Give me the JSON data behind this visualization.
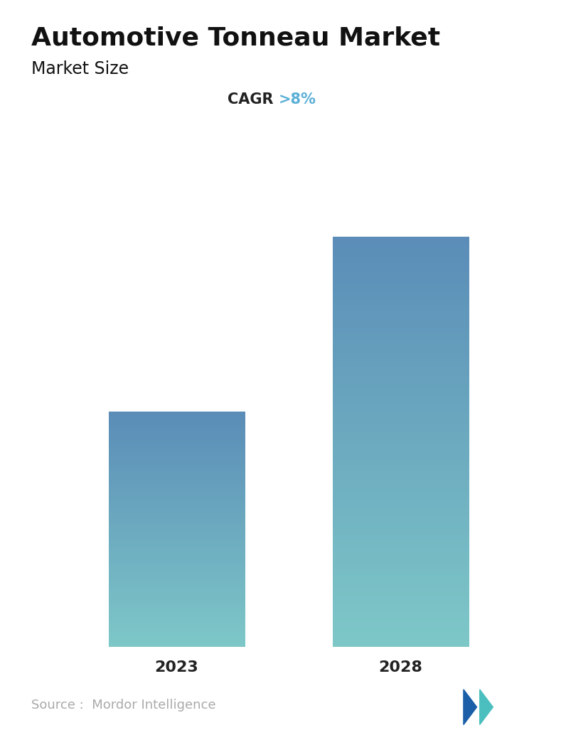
{
  "title": "Automotive Tonneau Market",
  "subtitle": "Market Size",
  "cagr_label": "CAGR ",
  "cagr_value": ">8%",
  "categories": [
    "2023",
    "2028"
  ],
  "values": [
    0.47,
    0.82
  ],
  "bar_top_color": "#5b8db8",
  "bar_bottom_color": "#7ec8c8",
  "title_fontsize": 26,
  "subtitle_fontsize": 17,
  "cagr_fontsize": 15,
  "cagr_value_color": "#5bafd6",
  "tick_fontsize": 16,
  "source_text": "Source :  Mordor Intelligence",
  "source_color": "#aaaaaa",
  "source_fontsize": 13,
  "bg_color": "#ffffff",
  "bar_width": 0.28,
  "x_positions": [
    0.27,
    0.73
  ],
  "ylim": [
    0,
    1.0
  ]
}
